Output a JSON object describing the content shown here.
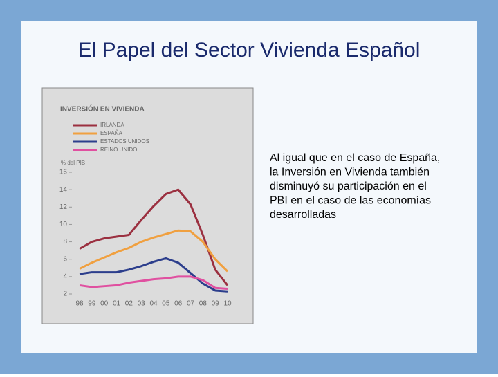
{
  "slide": {
    "title": "El Papel del Sector Vivienda Español",
    "text": [
      "Al igual que en el caso de España,",
      "la Inversión en Vivienda también",
      "disminuyó su participación en el",
      "PBI en el caso de las economías",
      "desarrolladas"
    ]
  },
  "chart_data": {
    "type": "line",
    "title": "INVERSIÓN EN VIVIENDA",
    "y_label": "% del PIB",
    "categories": [
      "98",
      "99",
      "00",
      "01",
      "02",
      "03",
      "04",
      "05",
      "06",
      "07",
      "08",
      "09",
      "10"
    ],
    "series": [
      {
        "name": "IRLANDA",
        "color": "#9b3040",
        "values": [
          7.2,
          8.0,
          8.4,
          8.6,
          8.8,
          10.5,
          12.1,
          13.5,
          14.0,
          12.3,
          8.8,
          4.8,
          3.0
        ]
      },
      {
        "name": "ESPAÑA",
        "color": "#f0a040",
        "values": [
          4.9,
          5.6,
          6.2,
          6.8,
          7.3,
          8.0,
          8.5,
          8.9,
          9.3,
          9.2,
          8.0,
          6.0,
          4.6
        ]
      },
      {
        "name": "ESTADOS UNIDOS",
        "color": "#2c3e8c",
        "values": [
          4.3,
          4.5,
          4.5,
          4.5,
          4.8,
          5.2,
          5.7,
          6.1,
          5.6,
          4.4,
          3.2,
          2.4,
          2.3
        ]
      },
      {
        "name": "REINO UNIDO",
        "color": "#e050a0",
        "values": [
          3.0,
          2.8,
          2.9,
          3.0,
          3.3,
          3.5,
          3.7,
          3.8,
          4.0,
          4.0,
          3.6,
          2.7,
          2.6
        ]
      }
    ],
    "ylim": [
      2,
      16
    ],
    "yticks": [
      2,
      4,
      6,
      8,
      10,
      12,
      14,
      16
    ],
    "grid": false
  }
}
